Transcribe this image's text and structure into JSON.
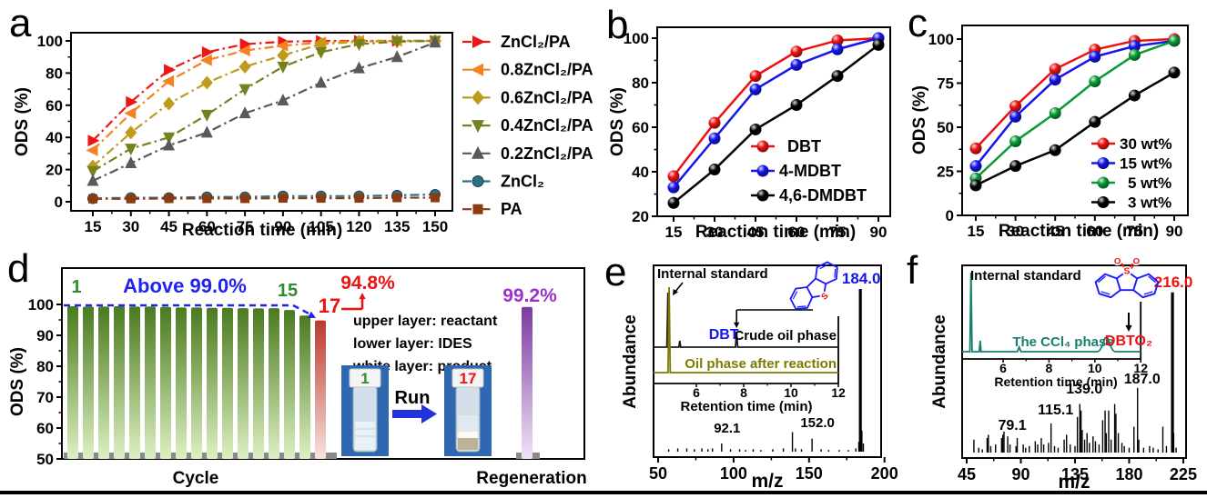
{
  "figure": {
    "background": "#ffffff",
    "bottom_rule_color": "#000000"
  },
  "chart_data": [
    {
      "id": "a",
      "panel_label": "a",
      "type": "line",
      "xlabel": "Reaction time (min)",
      "ylabel": "ODS (%)",
      "x": [
        15,
        30,
        45,
        60,
        75,
        90,
        105,
        120,
        135,
        150
      ],
      "xticks": [
        15,
        30,
        45,
        60,
        75,
        90,
        105,
        120,
        135,
        150
      ],
      "yticks": [
        0,
        20,
        40,
        60,
        80,
        100
      ],
      "ylim": [
        0,
        100
      ],
      "line_style": "dash-dot",
      "legend_position": "right-outside",
      "grid": false,
      "series": [
        {
          "name": "ZnCl₂/PA",
          "color": "#ee1515",
          "marker": "triangle-right",
          "values": [
            38,
            62,
            82,
            93,
            98,
            99.5,
            100,
            100,
            100,
            100
          ]
        },
        {
          "name": "0.8ZnCl₂/PA",
          "color": "#f58220",
          "marker": "triangle-left",
          "values": [
            32,
            55,
            75,
            88,
            94,
            97,
            99,
            100,
            100,
            100
          ]
        },
        {
          "name": "0.6ZnCl₂/PA",
          "color": "#bf9b1b",
          "marker": "diamond",
          "values": [
            22,
            43,
            61,
            74,
            84,
            91,
            98,
            99.5,
            100,
            100
          ]
        },
        {
          "name": "0.4ZnCl₂/PA",
          "color": "#75801f",
          "marker": "triangle-down",
          "values": [
            19,
            33,
            40,
            54,
            70,
            84,
            93,
            98,
            99.5,
            100
          ]
        },
        {
          "name": "0.2ZnCl₂/PA",
          "color": "#595959",
          "marker": "triangle-up",
          "values": [
            13,
            24,
            35,
            43,
            55,
            63,
            74,
            83,
            90,
            99
          ]
        },
        {
          "name": "ZnCl₂",
          "color": "#2e6f85",
          "marker": "circle",
          "values": [
            2,
            2.5,
            2.5,
            3,
            3,
            3.5,
            3.5,
            3.5,
            4,
            4.5
          ]
        },
        {
          "name": "PA",
          "color": "#8a3c10",
          "marker": "square",
          "values": [
            1.8,
            1.8,
            2,
            2,
            2,
            2.2,
            2.2,
            2.2,
            2.5,
            2.5
          ]
        }
      ]
    },
    {
      "id": "b",
      "panel_label": "b",
      "type": "line",
      "xlabel": "Reaction time (min)",
      "ylabel": "ODS (%)",
      "x": [
        15,
        30,
        45,
        60,
        75,
        90
      ],
      "xticks": [
        15,
        30,
        45,
        60,
        75,
        90
      ],
      "yticks": [
        20,
        40,
        60,
        80,
        100
      ],
      "ylim": [
        20,
        100
      ],
      "line_style": "solid",
      "legend_position": "inside-lower-right",
      "glossy_markers": true,
      "grid": false,
      "series": [
        {
          "name": "DBT",
          "color": "#ee1111",
          "marker": "sphere",
          "values": [
            38,
            62,
            83,
            94,
            99,
            100
          ]
        },
        {
          "name": "4-MDBT",
          "color": "#1414ee",
          "marker": "sphere",
          "values": [
            33,
            55,
            77,
            88,
            95,
            100
          ]
        },
        {
          "name": "4,6-DMDBT",
          "color": "#000000",
          "marker": "sphere",
          "values": [
            26,
            41,
            59,
            70,
            83,
            97
          ]
        }
      ]
    },
    {
      "id": "c",
      "panel_label": "c",
      "type": "line",
      "xlabel": "Reaction time (min)",
      "ylabel": "ODS (%)",
      "x": [
        15,
        30,
        45,
        60,
        75,
        90
      ],
      "xticks": [
        15,
        30,
        45,
        60,
        75,
        90
      ],
      "yticks": [
        0,
        25,
        50,
        75,
        100
      ],
      "ylim": [
        0,
        100
      ],
      "line_style": "solid",
      "legend_position": "inside-lower-right",
      "glossy_markers": true,
      "grid": false,
      "series": [
        {
          "name": "30 wt%",
          "color": "#ee1111",
          "marker": "sphere",
          "values": [
            38,
            62,
            83,
            94,
            99,
            100
          ]
        },
        {
          "name": "15 wt%",
          "color": "#1414ee",
          "marker": "sphere",
          "values": [
            28,
            56,
            77,
            90,
            96,
            99
          ]
        },
        {
          "name": "5 wt%",
          "color": "#089b35",
          "marker": "sphere",
          "values": [
            21,
            42,
            58,
            76,
            91,
            99
          ]
        },
        {
          "name": "3 wt%",
          "color": "#000000",
          "marker": "sphere",
          "values": [
            17,
            28,
            37,
            53,
            68,
            81
          ]
        }
      ]
    },
    {
      "id": "d",
      "panel_label": "d",
      "type": "bar",
      "ylabel": "ODS (%)",
      "yticks": [
        50,
        60,
        70,
        80,
        90,
        100
      ],
      "ylim": [
        50,
        112
      ],
      "xlabel_left": "Cycle",
      "xlabel_right": "Regeneration",
      "cycle_values": [
        99.4,
        99.3,
        99.3,
        99.4,
        99.3,
        99.3,
        99.2,
        99.0,
        99.0,
        98.9,
        98.9,
        98.8,
        98.7,
        98.8,
        98.2,
        96.4,
        94.8
      ],
      "regeneration_value": 99.2,
      "annotations": {
        "cycle1": "1",
        "above": "Above 99.0%",
        "cycle15": "15",
        "cycle17": "17",
        "cycle17_pct": "94.8%",
        "regen_pct": "99.2%"
      },
      "layer_notes": [
        "upper layer: reactant",
        "lower layer: IDES",
        "white layer: product"
      ],
      "run_label": "Run",
      "vial_labels": [
        "1",
        "17"
      ],
      "colors": {
        "green_top": "#4a7a1e",
        "green_bottom": "#ddf0c2",
        "red_top": "#bb3a2e",
        "red_bottom": "#f6e3de",
        "purple_top": "#7d3aa0",
        "purple_bottom": "#f0e4f7",
        "dashed_line": "#2222ee",
        "green_label": "#2f8c2f",
        "red_label": "#ee1111",
        "purple_label": "#9933cc",
        "floor": "#8a8a8a",
        "photo_bg": "#2e68b0",
        "run_arrow": "#2233dd"
      }
    },
    {
      "id": "e",
      "panel_label": "e",
      "type": "mass-spec",
      "xlabel": "m/z",
      "ylabel": "Abundance",
      "xticks": [
        50,
        100,
        150,
        200
      ],
      "xlim": [
        45,
        205
      ],
      "peaks": [
        [
          57,
          1.5
        ],
        [
          63,
          2
        ],
        [
          69,
          2
        ],
        [
          74,
          1.5
        ],
        [
          79,
          2
        ],
        [
          83,
          1.5
        ],
        [
          86,
          2
        ],
        [
          92.1,
          5
        ],
        [
          98,
          1.5
        ],
        [
          104,
          1.5
        ],
        [
          108,
          1
        ],
        [
          113,
          1.5
        ],
        [
          118,
          1
        ],
        [
          126,
          1.5
        ],
        [
          133,
          2
        ],
        [
          139,
          12
        ],
        [
          141,
          2
        ],
        [
          145,
          1.5
        ],
        [
          152,
          8
        ],
        [
          158,
          1.5
        ],
        [
          163,
          1
        ],
        [
          170,
          1
        ],
        [
          176,
          1
        ],
        [
          181,
          2
        ],
        [
          183,
          6
        ],
        [
          184,
          100
        ],
        [
          185,
          13
        ],
        [
          186,
          5
        ]
      ],
      "peak_labels": [
        {
          "text": "92.1",
          "mz": 92.1,
          "color": "#000000"
        },
        {
          "text": "152.0",
          "mz": 152,
          "color": "#000000"
        }
      ],
      "base_peak_label": {
        "text": "184.0",
        "mz": 184,
        "color": "#1414ee"
      },
      "inset": {
        "xticks": [
          6,
          8,
          10,
          12
        ],
        "xlabel": "Retention time (min)",
        "is_label": "Internal standard",
        "analyte_label": "DBT",
        "analyte_color": "#1414ee",
        "traces": [
          {
            "label": "Crude oil phase",
            "color": "#1a1a1a",
            "is_rt": 4.8,
            "analyte_rt": 7.7
          },
          {
            "label": "Oil phase after reaction",
            "color": "#7d7a00",
            "is_rt": 4.85
          }
        ]
      },
      "molecule": {
        "type": "dbt",
        "s_label": "S",
        "bond_color": "#1a1aff",
        "atom_color": "#ee1111"
      }
    },
    {
      "id": "f",
      "panel_label": "f",
      "type": "mass-spec",
      "xlabel": "m/z",
      "ylabel": "Abundance",
      "xticks": [
        45,
        90,
        135,
        180,
        225
      ],
      "xlim": [
        43,
        232
      ],
      "peaks": [
        [
          51,
          8
        ],
        [
          55,
          3
        ],
        [
          58,
          2
        ],
        [
          62,
          9
        ],
        [
          63,
          11
        ],
        [
          65,
          4
        ],
        [
          69,
          5
        ],
        [
          74,
          9
        ],
        [
          75,
          11
        ],
        [
          76,
          13
        ],
        [
          79.1,
          10
        ],
        [
          81,
          5
        ],
        [
          86,
          4
        ],
        [
          87,
          9
        ],
        [
          92,
          5
        ],
        [
          94,
          3
        ],
        [
          97,
          4
        ],
        [
          102,
          7
        ],
        [
          104,
          5
        ],
        [
          107,
          9
        ],
        [
          109,
          5
        ],
        [
          113,
          6
        ],
        [
          115.1,
          18
        ],
        [
          118,
          4
        ],
        [
          121,
          3
        ],
        [
          126,
          8
        ],
        [
          128,
          11
        ],
        [
          131,
          5
        ],
        [
          135,
          4
        ],
        [
          137,
          22
        ],
        [
          139,
          30
        ],
        [
          140,
          26
        ],
        [
          141,
          14
        ],
        [
          143,
          8
        ],
        [
          145,
          12
        ],
        [
          147,
          6
        ],
        [
          150,
          10
        ],
        [
          152,
          7
        ],
        [
          155,
          5
        ],
        [
          158,
          20
        ],
        [
          160,
          26
        ],
        [
          161,
          12
        ],
        [
          163,
          26
        ],
        [
          165,
          8
        ],
        [
          168,
          30
        ],
        [
          169,
          24
        ],
        [
          171,
          12
        ],
        [
          174,
          6
        ],
        [
          176,
          4
        ],
        [
          180,
          3
        ],
        [
          184,
          16
        ],
        [
          187,
          40
        ],
        [
          188,
          8
        ],
        [
          192,
          3
        ],
        [
          197,
          4
        ],
        [
          200,
          3
        ],
        [
          204,
          2
        ],
        [
          208,
          16
        ],
        [
          211,
          4
        ],
        [
          216,
          99
        ],
        [
          217,
          12
        ],
        [
          219,
          3
        ]
      ],
      "peak_labels": [
        {
          "text": "79.1",
          "mz": 79.1,
          "color": "#000000"
        },
        {
          "text": "115.1",
          "mz": 115.1,
          "color": "#000000"
        },
        {
          "text": "139.0",
          "mz": 139,
          "color": "#000000"
        },
        {
          "text": "187.0",
          "mz": 187,
          "color": "#000000"
        }
      ],
      "base_peak_label": {
        "text": "216.0",
        "mz": 216,
        "color": "#ee1111"
      },
      "inset": {
        "xticks": [
          6,
          8,
          10,
          12
        ],
        "xlabel": "Retention time (min)",
        "is_label": "Internal standard",
        "analyte_label": "DBTO₂",
        "analyte_color": "#ee1111",
        "traces": [
          {
            "label": "The CCl₄ phase",
            "color": "#15806e",
            "is_rt": 4.6,
            "analyte_rt": 10.5
          }
        ]
      },
      "molecule": {
        "type": "dbto2",
        "s_label": "S",
        "o_labels": [
          "O",
          "O"
        ],
        "bond_color": "#1a1aff",
        "atom_color": "#ee1111"
      }
    }
  ]
}
